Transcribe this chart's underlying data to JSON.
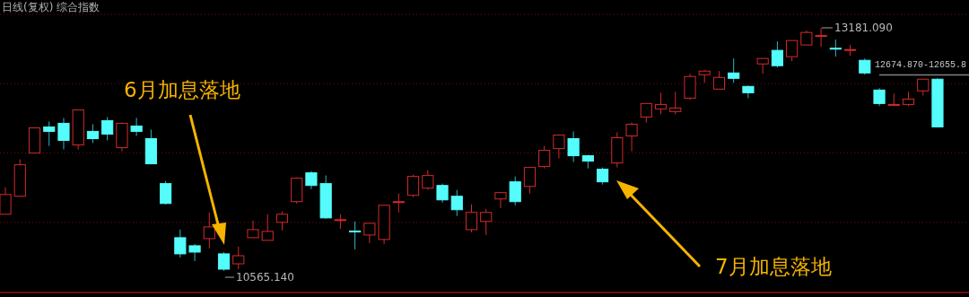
{
  "chart_data": {
    "type": "candlestick",
    "title": "日线(复权) 综合指数",
    "grid": "y",
    "ylim": [
      10333,
      13481
    ],
    "yticks": [
      {
        "value": 13326,
        "label": null
      },
      {
        "value": 12580,
        "label": null
      },
      {
        "value": 11834,
        "label": null
      },
      {
        "value": 11088,
        "label": null
      }
    ],
    "categories": [
      null,
      null,
      null,
      null,
      null,
      null,
      null,
      null,
      null,
      null,
      null,
      null,
      null,
      null,
      null,
      null,
      null,
      null,
      null,
      null,
      null,
      null,
      null,
      null,
      null,
      null,
      null,
      null,
      null,
      null,
      null,
      null,
      null,
      null,
      null,
      null,
      null,
      null,
      null,
      null,
      null,
      null,
      null,
      null,
      null,
      null,
      null,
      null,
      null,
      null,
      null,
      null,
      null,
      null,
      null,
      null,
      null,
      null,
      null,
      null,
      null,
      null,
      null,
      null,
      null
    ],
    "ohlc": [
      [
        11175,
        11466,
        11175,
        11388
      ],
      [
        11369,
        11766,
        11369,
        11708
      ],
      [
        11834,
        12105,
        11834,
        12105
      ],
      [
        12115,
        12173,
        11911,
        12067
      ],
      [
        12154,
        12212,
        11873,
        11970
      ],
      [
        11921,
        12299,
        11873,
        12299
      ],
      [
        12067,
        12144,
        11941,
        11989
      ],
      [
        12183,
        12222,
        11970,
        12038
      ],
      [
        11892,
        12163,
        11853,
        12154
      ],
      [
        12125,
        12212,
        12018,
        12067
      ],
      [
        11989,
        12086,
        11718,
        11718
      ],
      [
        11505,
        11534,
        11282,
        11291
      ],
      [
        10923,
        11010,
        10710,
        10749
      ],
      [
        10836,
        10855,
        10671,
        10768
      ],
      [
        10913,
        11195,
        10807,
        11039
      ],
      [
        10749,
        10768,
        10565.14,
        10584
      ],
      [
        10642,
        10826,
        10584,
        10729
      ],
      [
        10923,
        11107,
        10923,
        11010
      ],
      [
        10894,
        11175,
        10894,
        10991
      ],
      [
        11088,
        11204,
        11001,
        11175
      ],
      [
        11311,
        11572,
        11291,
        11563
      ],
      [
        11621,
        11640,
        11446,
        11485
      ],
      [
        11505,
        11592,
        11127,
        11136
      ],
      [
        11112,
        11175,
        11020,
        11117
      ],
      [
        10995,
        11098,
        10797,
        10991
      ],
      [
        10952,
        11078,
        10865,
        11078
      ],
      [
        10904,
        11272,
        10855,
        11272
      ],
      [
        11306,
        11398,
        11195,
        11311
      ],
      [
        11379,
        11601,
        11359,
        11582
      ],
      [
        11456,
        11650,
        11437,
        11592
      ],
      [
        11485,
        11505,
        11301,
        11330
      ],
      [
        11369,
        11437,
        11156,
        11224
      ],
      [
        11010,
        11282,
        10981,
        11195
      ],
      [
        11098,
        11233,
        10952,
        11195
      ],
      [
        11340,
        11408,
        11243,
        11408
      ],
      [
        11524,
        11582,
        11272,
        11311
      ],
      [
        11475,
        11679,
        11398,
        11679
      ],
      [
        11689,
        11911,
        11669,
        11863
      ],
      [
        11882,
        12028,
        11776,
        12028
      ],
      [
        11989,
        12067,
        11737,
        11805
      ],
      [
        11805,
        11815,
        11669,
        11747
      ],
      [
        11660,
        11679,
        11495,
        11524
      ],
      [
        11727,
        12057,
        11679,
        11999
      ],
      [
        12018,
        12163,
        11853,
        12144
      ],
      [
        12222,
        12367,
        12163,
        12367
      ],
      [
        12309,
        12483,
        12251,
        12357
      ],
      [
        12280,
        12493,
        12251,
        12319
      ],
      [
        12425,
        12687,
        12406,
        12658
      ],
      [
        12677,
        12726,
        12590,
        12716
      ],
      [
        12522,
        12716,
        12522,
        12648
      ],
      [
        12696,
        12852,
        12590,
        12638
      ],
      [
        12551,
        12561,
        12425,
        12483
      ],
      [
        12793,
        12852,
        12687,
        12852
      ],
      [
        12939,
        13036,
        12755,
        12774
      ],
      [
        12871,
        13045,
        12822,
        13045
      ],
      [
        12997,
        13152,
        12997,
        13132
      ],
      [
        13089,
        13181.09,
        12977,
        13099
      ],
      [
        12962,
        13055,
        12871,
        12958
      ],
      [
        12944,
        12997,
        12881,
        12948
      ],
      [
        12832,
        12852,
        12677,
        12696
      ],
      [
        12512,
        12532,
        12338,
        12367
      ],
      [
        12352,
        12474,
        12338,
        12357
      ],
      [
        12357,
        12493,
        12338,
        12415
      ],
      [
        12503,
        12629,
        12454,
        12629
      ],
      [
        12629,
        12638,
        12115,
        12115
      ]
    ],
    "ref_lines": [
      {
        "axis": "y",
        "value": 12674.87,
        "label": "12674.870-12655.8",
        "color": "#808080"
      }
    ],
    "annotations": [
      "6月加息落地",
      "7月加息落地",
      "10565.140",
      "13181.090"
    ]
  }
}
